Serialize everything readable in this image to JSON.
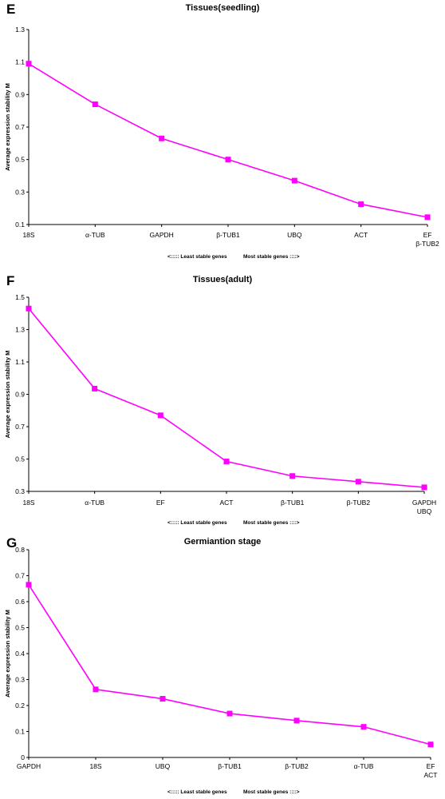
{
  "chart_data": [
    {
      "type": "line",
      "panel_letter": "E",
      "title": "Tissues(seedling)",
      "ylabel": "Average expression stability M",
      "ylim": [
        0.1,
        1.3
      ],
      "yticks": [
        "0.1",
        "0.3",
        "0.5",
        "0.7",
        "0.9",
        "1.1",
        "1.3"
      ],
      "categories": [
        [
          "18S"
        ],
        [
          "α-TUB"
        ],
        [
          "GAPDH"
        ],
        [
          "β-TUB1"
        ],
        [
          "UBQ"
        ],
        [
          "ACT"
        ],
        [
          "EF",
          "β-TUB2"
        ]
      ],
      "values": [
        1.09,
        0.84,
        0.63,
        0.5,
        0.37,
        0.225,
        0.145
      ],
      "color": "#ff00ff",
      "footer_left": "<:::::  Least stable genes",
      "footer_right": "Most stable genes ::::>"
    },
    {
      "type": "line",
      "panel_letter": "F",
      "title": "Tissues(adult)",
      "ylabel": "Average expression stability M",
      "ylim": [
        0.3,
        1.5
      ],
      "yticks": [
        "0.3",
        "0.5",
        "0.7",
        "0.9",
        "1.1",
        "1.3",
        "1.5"
      ],
      "categories": [
        [
          "18S"
        ],
        [
          "α-TUB"
        ],
        [
          "EF"
        ],
        [
          "ACT"
        ],
        [
          "β-TUB1"
        ],
        [
          "β-TUB2"
        ],
        [
          "GAPDH",
          "UBQ"
        ]
      ],
      "values": [
        1.43,
        0.935,
        0.77,
        0.485,
        0.395,
        0.36,
        0.325
      ],
      "color": "#ff00ff",
      "footer_left": "<:::::  Least stable genes",
      "footer_right": "Most stable genes ::::>"
    },
    {
      "type": "line",
      "panel_letter": "G",
      "title": "Germiantion stage",
      "ylabel": "Average expression stability M",
      "ylim": [
        0,
        0.8
      ],
      "yticks": [
        "0",
        "0.1",
        "0.2",
        "0.3",
        "0.4",
        "0.5",
        "0.6",
        "0.7",
        "0.8"
      ],
      "categories": [
        [
          "GAPDH"
        ],
        [
          "18S"
        ],
        [
          "UBQ"
        ],
        [
          "β-TUB1"
        ],
        [
          "β-TUB2"
        ],
        [
          "α-TUB"
        ],
        [
          "EF",
          "ACT"
        ]
      ],
      "values": [
        0.665,
        0.262,
        0.226,
        0.169,
        0.142,
        0.118,
        0.05
      ],
      "color": "#ff00ff",
      "footer_left": "<:::::  Least stable genes",
      "footer_right": "Most stable genes ::::>"
    }
  ]
}
